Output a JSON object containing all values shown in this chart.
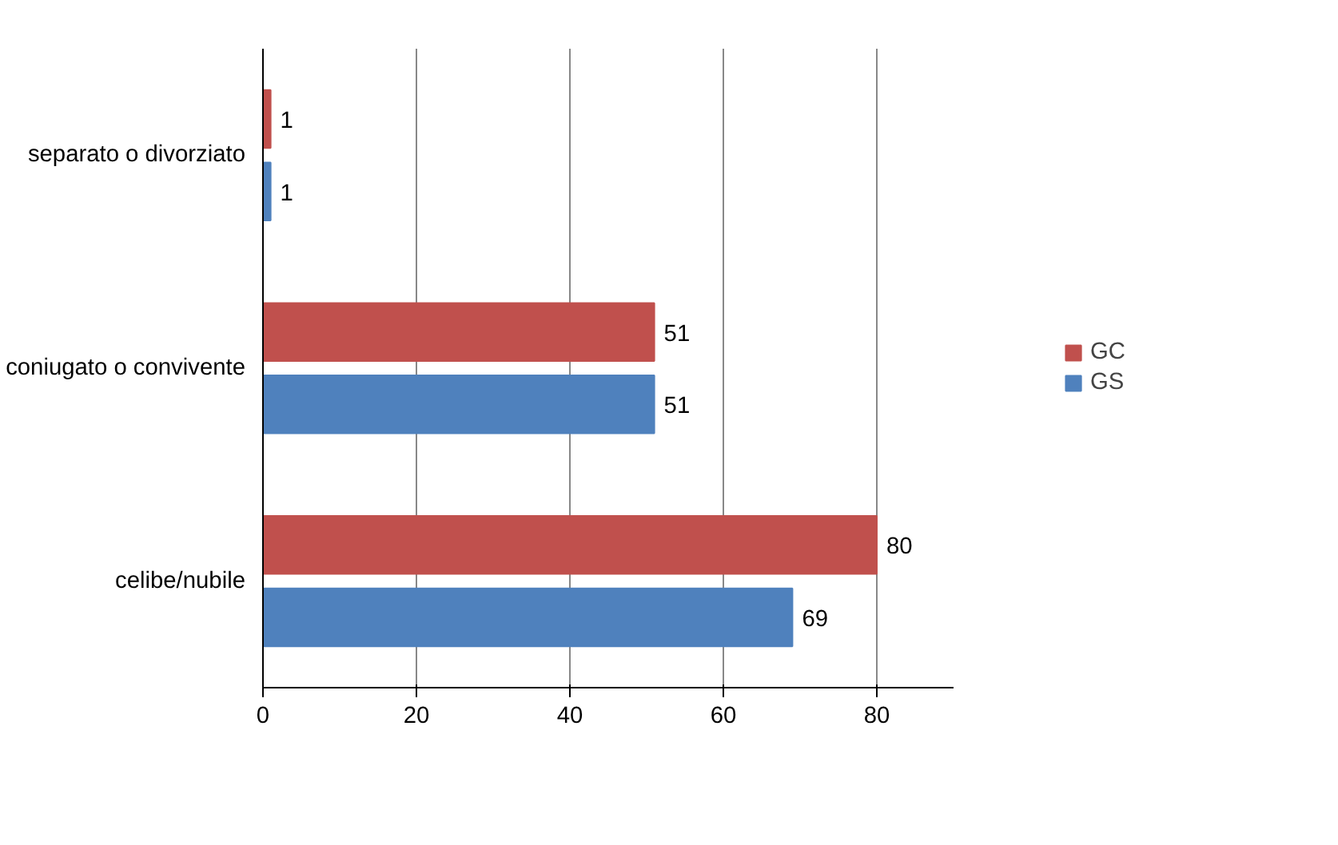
{
  "chart_data": {
    "type": "bar",
    "orientation": "horizontal",
    "categories": [
      "separato o divorziato",
      "coniugato o convivente",
      "celibe/nubile"
    ],
    "series": [
      {
        "name": "GC",
        "color": "#c0504d",
        "values": [
          1,
          51,
          80
        ]
      },
      {
        "name": "GS",
        "color": "#4f81bd",
        "values": [
          1,
          51,
          69
        ]
      }
    ],
    "xlim": [
      0,
      90
    ],
    "xticks": [
      0,
      20,
      40,
      60,
      80
    ],
    "grid": "x",
    "legend": "right",
    "data_labels": true
  }
}
